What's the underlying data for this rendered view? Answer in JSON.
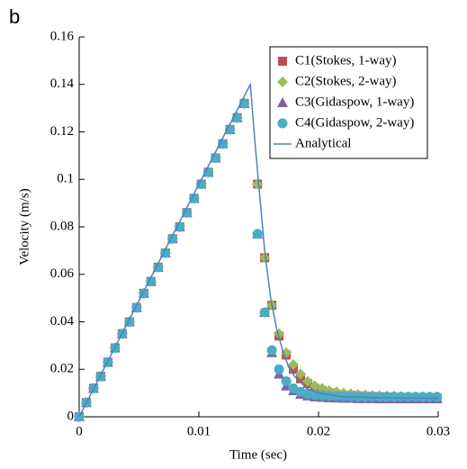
{
  "chart_data": {
    "type": "scatter",
    "annotation": "b",
    "xlabel": "Time (sec)",
    "ylabel": "Velocity (m/s)",
    "xlim": [
      0,
      0.03
    ],
    "ylim": [
      0,
      0.16
    ],
    "xticks": [
      0,
      0.01,
      0.02,
      0.03
    ],
    "yticks": [
      0,
      0.02,
      0.04,
      0.06,
      0.08,
      0.1,
      0.12,
      0.14,
      0.16
    ],
    "legend": "upper right",
    "series": [
      {
        "name": "C1(Stokes, 1-way)",
        "color": "#c0504d",
        "marker": "square",
        "x": [
          0,
          0.0006,
          0.0012,
          0.0018,
          0.0024,
          0.003,
          0.0036,
          0.0042,
          0.0048,
          0.0054,
          0.006,
          0.0066,
          0.0072,
          0.0078,
          0.0084,
          0.009,
          0.0096,
          0.0102,
          0.0108,
          0.0114,
          0.012,
          0.0126,
          0.0132,
          0.0138,
          0.0149,
          0.0155,
          0.0161,
          0.0167,
          0.0173,
          0.0179,
          0.0185,
          0.0191,
          0.0197,
          0.0203,
          0.0209,
          0.0215,
          0.0221,
          0.0227,
          0.0233,
          0.0239,
          0.0245,
          0.0251,
          0.0257,
          0.0263,
          0.0269,
          0.0275,
          0.0281,
          0.0287,
          0.0293,
          0.0299
        ],
        "values": [
          0,
          0.006,
          0.012,
          0.017,
          0.023,
          0.029,
          0.035,
          0.04,
          0.046,
          0.052,
          0.057,
          0.063,
          0.069,
          0.075,
          0.08,
          0.086,
          0.092,
          0.098,
          0.103,
          0.109,
          0.115,
          0.121,
          0.126,
          0.132,
          0.098,
          0.067,
          0.047,
          0.034,
          0.026,
          0.02,
          0.016,
          0.014,
          0.012,
          0.011,
          0.01,
          0.0095,
          0.009,
          0.009,
          0.0088,
          0.0086,
          0.0085,
          0.0084,
          0.0083,
          0.0082,
          0.0082,
          0.0081,
          0.0081,
          0.008,
          0.008,
          0.008
        ]
      },
      {
        "name": "C2(Stokes, 2-way)",
        "color": "#9bbb59",
        "marker": "diamond",
        "x": [
          0,
          0.0006,
          0.0012,
          0.0018,
          0.0024,
          0.003,
          0.0036,
          0.0042,
          0.0048,
          0.0054,
          0.006,
          0.0066,
          0.0072,
          0.0078,
          0.0084,
          0.009,
          0.0096,
          0.0102,
          0.0108,
          0.0114,
          0.012,
          0.0126,
          0.0132,
          0.0138,
          0.0149,
          0.0155,
          0.0161,
          0.0167,
          0.0173,
          0.0179,
          0.0185,
          0.0191,
          0.0197,
          0.0203,
          0.0209,
          0.0215,
          0.0221,
          0.0227,
          0.0233,
          0.0239,
          0.0245,
          0.0251,
          0.0257,
          0.0263,
          0.0269,
          0.0275,
          0.0281,
          0.0287,
          0.0293,
          0.0299
        ],
        "values": [
          0,
          0.006,
          0.012,
          0.017,
          0.023,
          0.029,
          0.035,
          0.04,
          0.046,
          0.052,
          0.057,
          0.063,
          0.069,
          0.075,
          0.08,
          0.086,
          0.092,
          0.098,
          0.103,
          0.109,
          0.115,
          0.121,
          0.126,
          0.132,
          0.098,
          0.067,
          0.047,
          0.035,
          0.027,
          0.022,
          0.018,
          0.015,
          0.013,
          0.012,
          0.011,
          0.0105,
          0.01,
          0.0097,
          0.0094,
          0.0092,
          0.009,
          0.0089,
          0.0088,
          0.0087,
          0.0086,
          0.0085,
          0.0085,
          0.0084,
          0.0084,
          0.0084
        ]
      },
      {
        "name": "C3(Gidaspow, 1-way)",
        "color": "#8064a2",
        "marker": "triangle",
        "x": [
          0,
          0.0006,
          0.0012,
          0.0018,
          0.0024,
          0.003,
          0.0036,
          0.0042,
          0.0048,
          0.0054,
          0.006,
          0.0066,
          0.0072,
          0.0078,
          0.0084,
          0.009,
          0.0096,
          0.0102,
          0.0108,
          0.0114,
          0.012,
          0.0126,
          0.0132,
          0.0138,
          0.0149,
          0.0155,
          0.0161,
          0.0167,
          0.0173,
          0.0179,
          0.0185,
          0.0191,
          0.0197,
          0.0203,
          0.0209,
          0.0215,
          0.0221,
          0.0227,
          0.0233,
          0.0239,
          0.0245,
          0.0251,
          0.0257,
          0.0263,
          0.0269,
          0.0275,
          0.0281,
          0.0287,
          0.0293,
          0.0299
        ],
        "values": [
          0,
          0.006,
          0.012,
          0.017,
          0.023,
          0.029,
          0.035,
          0.04,
          0.046,
          0.052,
          0.057,
          0.063,
          0.069,
          0.075,
          0.08,
          0.086,
          0.092,
          0.098,
          0.103,
          0.109,
          0.115,
          0.121,
          0.126,
          0.132,
          0.077,
          0.044,
          0.027,
          0.018,
          0.013,
          0.011,
          0.0095,
          0.0088,
          0.0084,
          0.0082,
          0.008,
          0.0079,
          0.0078,
          0.0078,
          0.0077,
          0.0077,
          0.0077,
          0.0076,
          0.0076,
          0.0076,
          0.0076,
          0.0076,
          0.0076,
          0.0076,
          0.0076,
          0.0076
        ]
      },
      {
        "name": "C4(Gidaspow, 2-way)",
        "color": "#4bacc6",
        "marker": "circle",
        "x": [
          0,
          0.0006,
          0.0012,
          0.0018,
          0.0024,
          0.003,
          0.0036,
          0.0042,
          0.0048,
          0.0054,
          0.006,
          0.0066,
          0.0072,
          0.0078,
          0.0084,
          0.009,
          0.0096,
          0.0102,
          0.0108,
          0.0114,
          0.012,
          0.0126,
          0.0132,
          0.0138,
          0.0149,
          0.0155,
          0.0161,
          0.0167,
          0.0173,
          0.0179,
          0.0185,
          0.0191,
          0.0197,
          0.0203,
          0.0209,
          0.0215,
          0.0221,
          0.0227,
          0.0233,
          0.0239,
          0.0245,
          0.0251,
          0.0257,
          0.0263,
          0.0269,
          0.0275,
          0.0281,
          0.0287,
          0.0293,
          0.0299
        ],
        "values": [
          0,
          0.006,
          0.012,
          0.017,
          0.023,
          0.029,
          0.035,
          0.04,
          0.046,
          0.052,
          0.057,
          0.063,
          0.069,
          0.075,
          0.08,
          0.086,
          0.092,
          0.098,
          0.103,
          0.109,
          0.115,
          0.121,
          0.126,
          0.132,
          0.077,
          0.044,
          0.028,
          0.02,
          0.015,
          0.012,
          0.0105,
          0.0097,
          0.0092,
          0.009,
          0.0088,
          0.0087,
          0.0086,
          0.0086,
          0.0085,
          0.0085,
          0.0085,
          0.0084,
          0.0084,
          0.0084,
          0.0084,
          0.0084,
          0.0084,
          0.0084,
          0.0084,
          0.0084
        ]
      },
      {
        "name": "Analytical",
        "color": "#4f81bd",
        "marker": "line",
        "x": [
          0,
          0.0143,
          0.0147,
          0.015,
          0.0155,
          0.016,
          0.0165,
          0.017,
          0.0175,
          0.018,
          0.019,
          0.02,
          0.022,
          0.025,
          0.03
        ],
        "values": [
          0,
          0.14,
          0.115,
          0.098,
          0.07,
          0.05,
          0.037,
          0.028,
          0.021,
          0.017,
          0.012,
          0.01,
          0.0085,
          0.008,
          0.0078
        ]
      }
    ]
  }
}
